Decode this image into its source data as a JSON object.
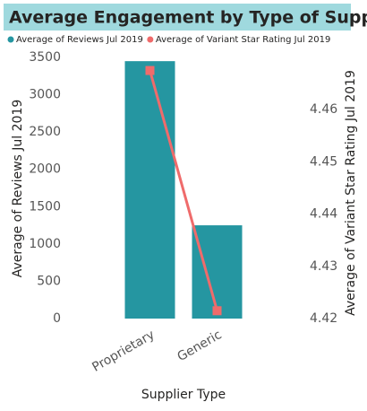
{
  "chart_data": {
    "type": "combo",
    "title": "Average Engagement by Type of Supplier",
    "categories": [
      "Proprietary",
      "Generic"
    ],
    "series": [
      {
        "name": "Average of Reviews Jul 2019",
        "type": "bar",
        "color": "#2596a1",
        "values": [
          3450,
          1250
        ]
      },
      {
        "name": "Average of Variant Star Rating Jul 2019",
        "type": "line",
        "axis": "y2",
        "color": "#ef6b6b",
        "values": [
          4.4675,
          4.4215
        ]
      }
    ],
    "x_label": "Supplier Type",
    "y_label": "Average of Reviews Jul 2019",
    "y2_label": "Average of Variant Star Rating Jul 2019",
    "ylim": [
      0,
      3500
    ],
    "yticks": [
      0,
      500,
      1000,
      1500,
      2000,
      2500,
      3000,
      3500
    ],
    "y2lim": [
      4.42,
      4.47
    ],
    "y2ticks": [
      4.42,
      4.43,
      4.44,
      4.45,
      4.46
    ]
  }
}
